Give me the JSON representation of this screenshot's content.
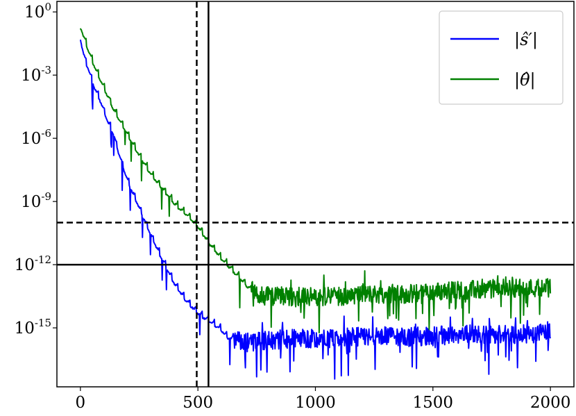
{
  "chart_data": {
    "type": "line",
    "title": "",
    "xlabel": "",
    "ylabel": "",
    "xlim": [
      -100,
      2100
    ],
    "y_scale": "log",
    "ylim_exponent": [
      -17.8,
      0.5
    ],
    "xticks": [
      0,
      500,
      1000,
      1500,
      2000
    ],
    "xtick_labels": [
      "0",
      "500",
      "1000",
      "1500",
      "2000"
    ],
    "yticks": [
      {
        "base": "10",
        "exp": "0",
        "value_exponent": 0
      },
      {
        "base": "10",
        "exp": "-3",
        "value_exponent": -3
      },
      {
        "base": "10",
        "exp": "-6",
        "value_exponent": -6
      },
      {
        "base": "10",
        "exp": "-9",
        "value_exponent": -9
      },
      {
        "base": "10",
        "exp": "-12",
        "value_exponent": -12
      },
      {
        "base": "10",
        "exp": "-15",
        "value_exponent": -15
      }
    ],
    "reference_lines": {
      "vertical": [
        {
          "x": 495,
          "style": "dashed",
          "color": "#000000"
        },
        {
          "x": 545,
          "style": "solid",
          "color": "#000000"
        }
      ],
      "horizontal": [
        {
          "y_exponent": -10,
          "style": "dashed",
          "color": "#000000"
        },
        {
          "y_exponent": -12,
          "style": "solid",
          "color": "#000000"
        }
      ]
    },
    "series": [
      {
        "name": "|ŝ′|",
        "color": "#0000ff",
        "x": [
          0,
          20,
          40,
          60,
          80,
          100,
          120,
          140,
          160,
          180,
          200,
          250,
          300,
          350,
          400,
          450,
          500,
          550,
          600,
          620,
          650,
          700,
          800,
          900,
          1000,
          1100,
          1200,
          1300,
          1400,
          1500,
          1600,
          1700,
          1800,
          1900,
          2000
        ],
        "y_exponent": [
          -1.2,
          -2.2,
          -2.8,
          -3.5,
          -4.0,
          -4.6,
          -5.2,
          -5.7,
          -6.5,
          -7.2,
          -7.9,
          -9.2,
          -10.5,
          -11.7,
          -12.8,
          -13.6,
          -14.2,
          -14.6,
          -15.0,
          -15.3,
          -15.5,
          -15.7,
          -15.6,
          -15.5,
          -15.5,
          -15.5,
          -15.4,
          -15.4,
          -15.4,
          -15.4,
          -15.3,
          -15.3,
          -15.3,
          -15.3,
          -15.2
        ],
        "noise_start_x": 650
      },
      {
        "name": "|θ̂|",
        "color": "#008000",
        "x": [
          0,
          20,
          40,
          60,
          80,
          100,
          120,
          140,
          160,
          180,
          200,
          250,
          300,
          350,
          400,
          450,
          500,
          550,
          600,
          650,
          700,
          750,
          800,
          900,
          1000,
          1100,
          1200,
          1300,
          1400,
          1500,
          1600,
          1700,
          1800,
          1900,
          2000
        ],
        "y_exponent": [
          -0.6,
          -1.3,
          -1.9,
          -2.5,
          -3.0,
          -3.5,
          -4.0,
          -4.5,
          -4.9,
          -5.3,
          -5.7,
          -6.7,
          -7.6,
          -8.3,
          -9.0,
          -9.5,
          -10.1,
          -10.9,
          -11.6,
          -12.2,
          -12.8,
          -13.4,
          -13.5,
          -13.5,
          -13.5,
          -13.5,
          -13.4,
          -13.4,
          -13.4,
          -13.3,
          -13.2,
          -13.2,
          -13.1,
          -13.1,
          -13.1
        ],
        "noise_start_x": 730
      }
    ],
    "legend": {
      "placement": "top-right",
      "entries": [
        {
          "symbol": "|",
          "math_var": "ŝ′",
          "color": "#0000ff"
        },
        {
          "symbol": "|",
          "math_var": "θ̂",
          "color": "#008000"
        }
      ]
    },
    "grid": false
  }
}
